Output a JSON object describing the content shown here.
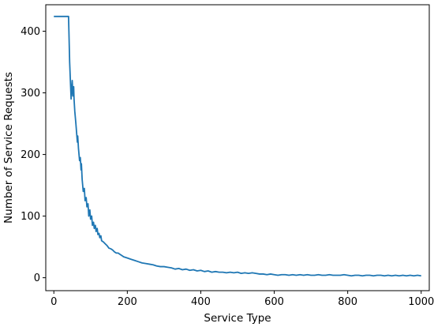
{
  "chart_data": {
    "type": "line",
    "title": "",
    "xlabel": "Service Type",
    "ylabel": "Number of Service Requests",
    "xlim": [
      -22,
      1022
    ],
    "ylim": [
      -21,
      443
    ],
    "x_ticks": [
      0,
      200,
      400,
      600,
      800,
      1000
    ],
    "y_ticks": [
      0,
      100,
      200,
      300,
      400
    ],
    "grid": false,
    "legend": "none",
    "colors": {
      "line": "#1f77b4",
      "axes": "#000000",
      "background": "#ffffff"
    },
    "series": [
      {
        "x": [
          0,
          5,
          10,
          15,
          20,
          25,
          30,
          35,
          40,
          41,
          43,
          45,
          47,
          48,
          50,
          52,
          54,
          55,
          57,
          60,
          62,
          64,
          65,
          67,
          70,
          72,
          74,
          75,
          77,
          80,
          83,
          85,
          88,
          90,
          93,
          95,
          98,
          100,
          103,
          105,
          108,
          110,
          113,
          115,
          118,
          120,
          123,
          125,
          128,
          130,
          135,
          140,
          145,
          150,
          155,
          160,
          165,
          170,
          175,
          180,
          185,
          190,
          195,
          200,
          210,
          220,
          230,
          240,
          250,
          260,
          270,
          280,
          290,
          300,
          310,
          320,
          330,
          340,
          350,
          360,
          370,
          380,
          390,
          400,
          410,
          420,
          430,
          440,
          450,
          460,
          470,
          480,
          490,
          500,
          510,
          520,
          530,
          540,
          550,
          560,
          570,
          580,
          590,
          600,
          610,
          620,
          630,
          640,
          650,
          660,
          670,
          680,
          690,
          700,
          710,
          720,
          730,
          740,
          750,
          760,
          770,
          780,
          790,
          800,
          810,
          820,
          830,
          840,
          850,
          860,
          870,
          880,
          890,
          900,
          910,
          920,
          930,
          940,
          950,
          960,
          970,
          980,
          990,
          1000
        ],
        "y": [
          424,
          424,
          424,
          424,
          424,
          424,
          424,
          424,
          424,
          400,
          350,
          320,
          290,
          300,
          320,
          295,
          310,
          290,
          270,
          250,
          235,
          220,
          230,
          210,
          190,
          195,
          175,
          185,
          160,
          140,
          145,
          125,
          130,
          115,
          120,
          100,
          110,
          95,
          100,
          85,
          90,
          80,
          85,
          75,
          80,
          70,
          72,
          65,
          68,
          60,
          58,
          55,
          52,
          48,
          47,
          45,
          42,
          40,
          40,
          38,
          36,
          34,
          33,
          32,
          30,
          28,
          26,
          24,
          23,
          22,
          21,
          19,
          18,
          18,
          17,
          16,
          14,
          15,
          13,
          14,
          12,
          13,
          11,
          12,
          10,
          11,
          9,
          10,
          9,
          9,
          8,
          9,
          8,
          9,
          7,
          8,
          7,
          8,
          7,
          6,
          6,
          5,
          6,
          5,
          4,
          5,
          5,
          4,
          5,
          4,
          5,
          4,
          5,
          4,
          4,
          5,
          4,
          4,
          5,
          4,
          4,
          4,
          5,
          4,
          3,
          4,
          4,
          3,
          4,
          4,
          3,
          4,
          4,
          3,
          4,
          3,
          4,
          3,
          4,
          3,
          4,
          3,
          4,
          3
        ]
      }
    ]
  }
}
